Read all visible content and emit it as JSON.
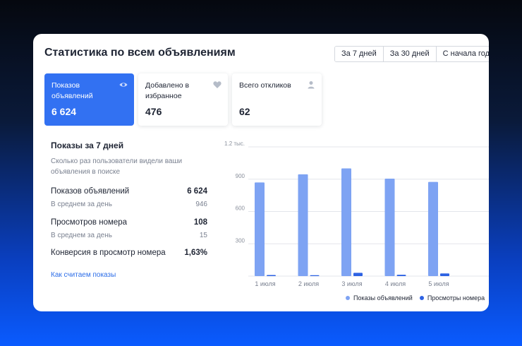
{
  "header": {
    "title": "Статистика по всем объявлениям"
  },
  "periods": [
    {
      "label": "За 7 дней",
      "selected": true
    },
    {
      "label": "За 30 дней",
      "selected": false
    },
    {
      "label": "С начала года",
      "selected": false
    }
  ],
  "tiles": [
    {
      "label": "Показов объявлений",
      "value": "6 624",
      "icon": "eye-icon",
      "active": true
    },
    {
      "label": "Добавлено в избранное",
      "value": "476",
      "icon": "heart-icon",
      "active": false
    },
    {
      "label": "Всего откликов",
      "value": "62",
      "icon": "user-icon",
      "active": false
    }
  ],
  "summary": {
    "title": "Показы за 7 дней",
    "description": "Сколько раз пользователи видели ваши объявления в поиске",
    "views_label": "Показов объявлений",
    "views_value": "6 624",
    "views_avg_label": "В среднем за день",
    "views_avg_value": "946",
    "phone_label": "Просмотров номера",
    "phone_value": "108",
    "phone_avg_label": "В среднем за день",
    "phone_avg_value": "15",
    "conversion_label": "Конверсия в просмотр номера",
    "conversion_value": "1,63%",
    "link": "Как считаем показы"
  },
  "colors": {
    "accent": "#3271f2",
    "series_views": "#7ea3f3",
    "series_phone": "#2d62e3"
  },
  "chart_data": {
    "type": "bar",
    "categories": [
      "1 июля",
      "2 июля",
      "3 июля",
      "4 июля",
      "5 июля"
    ],
    "series": [
      {
        "name": "Показы объявлений",
        "values": [
          870,
          945,
          1000,
          905,
          875
        ]
      },
      {
        "name": "Просмотры номера",
        "values": [
          10,
          8,
          30,
          12,
          25
        ]
      }
    ],
    "y_ticks": [
      "300",
      "600",
      "900",
      "1.2 тыс."
    ],
    "ylim": [
      0,
      1200
    ],
    "grid": true,
    "legend": "bottom-right"
  }
}
